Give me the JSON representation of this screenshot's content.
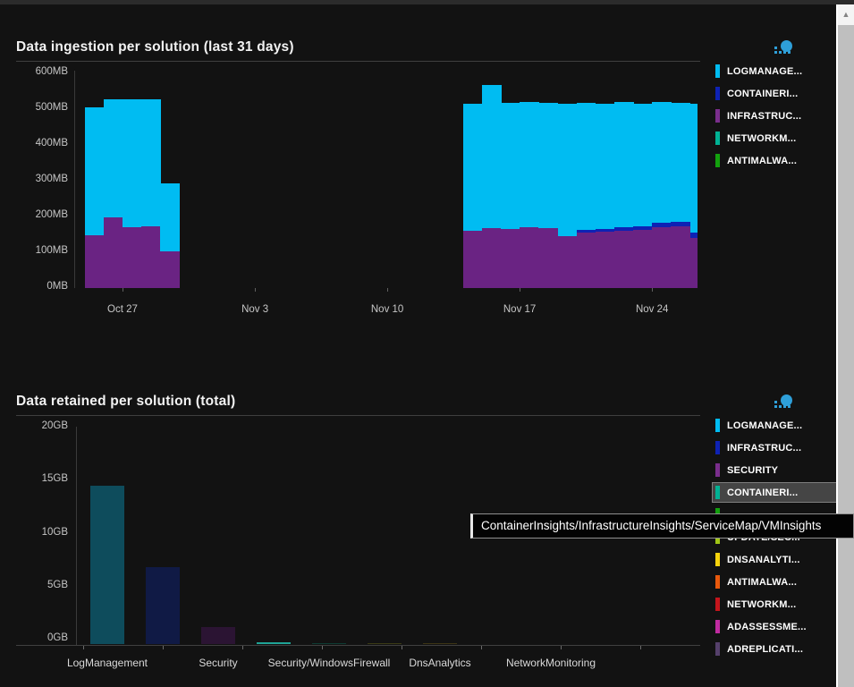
{
  "ingestion_chart": {
    "title": "Data ingestion per solution (last 31 days)",
    "legend": [
      {
        "label": "LOGMANAGE...",
        "color": "#00BCF2"
      },
      {
        "label": "CONTAINERI...",
        "color": "#0E22B4"
      },
      {
        "label": "INFRASTRUC...",
        "color": "#7A2E8C"
      },
      {
        "label": "NETWORKM...",
        "color": "#00B294"
      },
      {
        "label": "ANTIMALWA...",
        "color": "#13A10E"
      }
    ],
    "chart_data": {
      "type": "bar",
      "stacked": true,
      "unit": "MB",
      "ylim": [
        0,
        600
      ],
      "yticks": [
        "600MB",
        "500MB",
        "400MB",
        "300MB",
        "200MB",
        "100MB",
        "0MB"
      ],
      "xticks": [
        {
          "label": "Oct 27",
          "day": 2
        },
        {
          "label": "Nov 3",
          "day": 9
        },
        {
          "label": "Nov 10",
          "day": 16
        },
        {
          "label": "Nov 17",
          "day": 23
        },
        {
          "label": "Nov 24",
          "day": 30
        }
      ],
      "series_colors": {
        "logmanagement": "#00BCF2",
        "containerinsights": "#0E22B4",
        "infrastructureinsights": "#6A2383"
      },
      "bars": [
        {
          "day": 0,
          "date": "Oct 25",
          "infrastructureinsights": 147,
          "containerinsights": 0,
          "logmanagement": 358
        },
        {
          "day": 1,
          "date": "Oct 26",
          "infrastructureinsights": 197,
          "containerinsights": 0,
          "logmanagement": 331
        },
        {
          "day": 2,
          "date": "Oct 27",
          "infrastructureinsights": 170,
          "containerinsights": 0,
          "logmanagement": 358
        },
        {
          "day": 3,
          "date": "Oct 28",
          "infrastructureinsights": 172,
          "containerinsights": 0,
          "logmanagement": 356
        },
        {
          "day": 4,
          "date": "Oct 29",
          "infrastructureinsights": 102,
          "containerinsights": 0,
          "logmanagement": 191
        },
        {
          "day": 20,
          "date": "Nov 14",
          "infrastructureinsights": 160,
          "containerinsights": 0,
          "logmanagement": 355
        },
        {
          "day": 21,
          "date": "Nov 15",
          "infrastructureinsights": 168,
          "containerinsights": 0,
          "logmanagement": 399
        },
        {
          "day": 22,
          "date": "Nov 16",
          "infrastructureinsights": 165,
          "containerinsights": 0,
          "logmanagement": 353
        },
        {
          "day": 23,
          "date": "Nov 17",
          "infrastructureinsights": 170,
          "containerinsights": 0,
          "logmanagement": 350
        },
        {
          "day": 24,
          "date": "Nov 18",
          "infrastructureinsights": 168,
          "containerinsights": 0,
          "logmanagement": 349
        },
        {
          "day": 25,
          "date": "Nov 19",
          "infrastructureinsights": 145,
          "containerinsights": 0,
          "logmanagement": 370
        },
        {
          "day": 26,
          "date": "Nov 20",
          "infrastructureinsights": 155,
          "containerinsights": 8,
          "logmanagement": 355
        },
        {
          "day": 27,
          "date": "Nov 21",
          "infrastructureinsights": 158,
          "containerinsights": 8,
          "logmanagement": 350
        },
        {
          "day": 28,
          "date": "Nov 22",
          "infrastructureinsights": 160,
          "containerinsights": 10,
          "logmanagement": 351
        },
        {
          "day": 29,
          "date": "Nov 23",
          "infrastructureinsights": 162,
          "containerinsights": 10,
          "logmanagement": 344
        },
        {
          "day": 30,
          "date": "Nov 24",
          "infrastructureinsights": 170,
          "containerinsights": 13,
          "logmanagement": 336
        },
        {
          "day": 31,
          "date": "Nov 25",
          "infrastructureinsights": 172,
          "containerinsights": 13,
          "logmanagement": 332
        },
        {
          "day": 32,
          "date": "Nov 26",
          "infrastructureinsights": 140,
          "containerinsights": 15,
          "logmanagement": 360
        }
      ]
    }
  },
  "retention_chart": {
    "title": "Data retained per solution (total)",
    "legend": [
      {
        "label": "LOGMANAGE...",
        "color": "#00BCF2"
      },
      {
        "label": "INFRASTRUC...",
        "color": "#0E22B4"
      },
      {
        "label": "SECURITY",
        "color": "#7A2E8C"
      },
      {
        "label": "CONTAINERI...",
        "color": "#00B294",
        "hovered": true
      },
      {
        "label": "",
        "color": "#13A10E",
        "obscured": true
      },
      {
        "label": "UPDATE/SEC...",
        "color": "#A0C515"
      },
      {
        "label": "DNSANALYTI...",
        "color": "#F7D30C"
      },
      {
        "label": "ANTIMALWA...",
        "color": "#E8590C"
      },
      {
        "label": "NETWORKM...",
        "color": "#C4151C"
      },
      {
        "label": "ADASSESSME...",
        "color": "#C02BA0"
      },
      {
        "label": "ADREPLICATI...",
        "color": "#55406B"
      }
    ],
    "tooltip": {
      "text": "ContainerInsights/InfrastructureInsights/ServiceMap/VMInsights"
    },
    "chart_data": {
      "type": "bar",
      "unit": "GB",
      "ylim": [
        0,
        20
      ],
      "yticks": [
        "20GB",
        "15GB",
        "10GB",
        "5GB",
        "0GB"
      ],
      "xlabels": [
        {
          "label": "LogManagement",
          "slot": 0
        },
        {
          "label": "Security",
          "slot": 2
        },
        {
          "label": "Security/WindowsFirewall",
          "slot": 4
        },
        {
          "label": "DnsAnalytics",
          "slot": 6
        },
        {
          "label": "NetworkMonitoring",
          "slot": 8
        }
      ],
      "bars": [
        {
          "slot": 0,
          "name": "LogManagement",
          "value": 14.9,
          "color": "#0E4C5C"
        },
        {
          "slot": 1,
          "name": "",
          "value": 7.3,
          "color": "#101A45"
        },
        {
          "slot": 2,
          "name": "Security",
          "value": 1.6,
          "color": "#2B1433"
        },
        {
          "slot": 3,
          "name": "",
          "value": 0.15,
          "color": "#1FA396",
          "highlighted": true
        },
        {
          "slot": 4,
          "name": "Security/WindowsFirewall",
          "value": 0.08,
          "color": "#0E3C32"
        },
        {
          "slot": 5,
          "name": "",
          "value": 0.05,
          "color": "#3A3A14"
        },
        {
          "slot": 6,
          "name": "DnsAnalytics",
          "value": 0.05,
          "color": "#3D3514"
        }
      ]
    }
  }
}
